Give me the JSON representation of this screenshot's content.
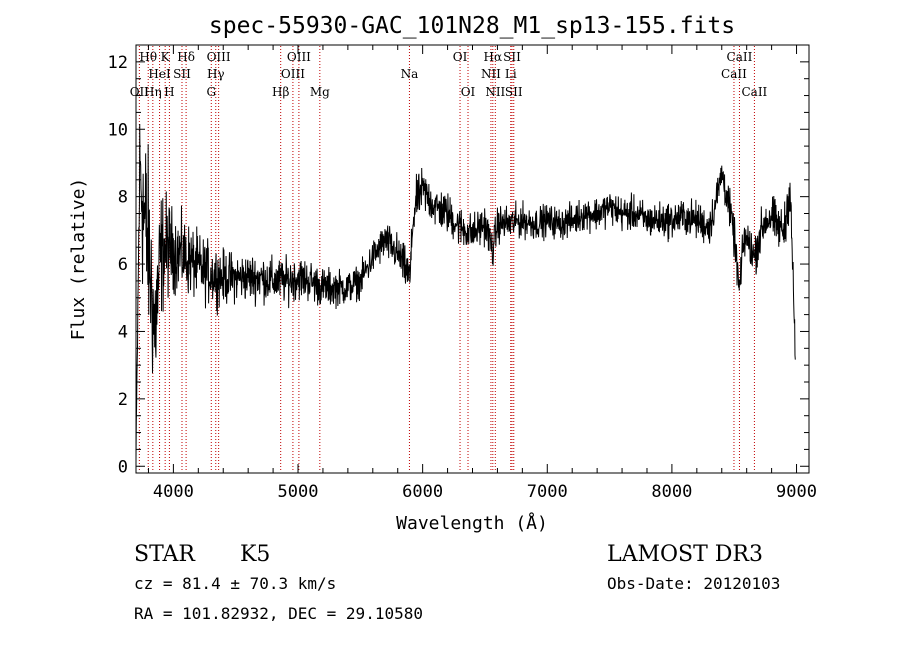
{
  "chart_data": {
    "type": "line",
    "title": "spec-55930-GAC_101N28_M1_sp13-155.fits",
    "xlabel": "Wavelength (Å)",
    "ylabel": "Flux (relative)",
    "xlim": [
      3700,
      9100
    ],
    "ylim": [
      -0.2,
      12.5
    ],
    "xticks": [
      4000,
      5000,
      6000,
      7000,
      8000,
      9000
    ],
    "yticks": [
      0,
      2,
      4,
      6,
      8,
      10,
      12
    ],
    "line_color": "#000000",
    "marker_color": "#c00000",
    "spectrum_anchors": {
      "x": [
        3700,
        3730,
        3760,
        3800,
        3850,
        3900,
        3950,
        4000,
        4100,
        4200,
        4300,
        4400,
        4500,
        4600,
        4700,
        4800,
        4900,
        5000,
        5100,
        5200,
        5300,
        5400,
        5500,
        5600,
        5700,
        5800,
        5900,
        5920,
        5950,
        6000,
        6100,
        6200,
        6300,
        6400,
        6500,
        6563,
        6600,
        6700,
        6800,
        6900,
        7000,
        7100,
        7200,
        7300,
        7400,
        7500,
        7600,
        7700,
        7800,
        7900,
        8000,
        8100,
        8200,
        8300,
        8350,
        8400,
        8450,
        8500,
        8542,
        8580,
        8620,
        8662,
        8700,
        8750,
        8800,
        8850,
        8900,
        8950,
        8990
      ],
      "y": [
        0.2,
        9.0,
        7.5,
        6.5,
        4.0,
        6.3,
        6.5,
        6.4,
        6.2,
        5.9,
        5.7,
        5.6,
        5.6,
        5.6,
        5.6,
        5.5,
        5.5,
        5.6,
        5.5,
        5.3,
        5.3,
        5.3,
        5.5,
        6.2,
        6.7,
        6.3,
        5.6,
        7.2,
        7.9,
        8.2,
        7.7,
        7.5,
        7.1,
        6.9,
        7.2,
        6.4,
        7.2,
        7.2,
        7.3,
        7.2,
        7.3,
        7.2,
        7.3,
        7.5,
        7.5,
        7.7,
        7.5,
        7.5,
        7.3,
        7.3,
        7.3,
        7.4,
        7.3,
        7.1,
        7.8,
        8.7,
        7.9,
        6.8,
        5.2,
        6.8,
        6.6,
        6.2,
        6.8,
        7.3,
        7.4,
        7.1,
        7.0,
        8.3,
        3.2
      ]
    },
    "spectrum_noise": {
      "x": [
        3700,
        3760,
        3900,
        4000,
        4500,
        5000,
        5500,
        5800,
        6000,
        7000,
        8000,
        8500,
        8990
      ],
      "amp": [
        0.3,
        2.6,
        1.6,
        1.0,
        0.6,
        0.55,
        0.4,
        0.5,
        0.55,
        0.4,
        0.45,
        0.5,
        0.6
      ]
    },
    "lines": [
      {
        "label": "OII",
        "x": 3727,
        "row": 3
      },
      {
        "label": "Hθ",
        "x": 3798,
        "row": 1
      },
      {
        "label": "Hη",
        "x": 3835,
        "row": 3
      },
      {
        "label": "HeI",
        "x": 3889,
        "row": 2
      },
      {
        "label": "K",
        "x": 3934,
        "row": 1
      },
      {
        "label": "H",
        "x": 3968,
        "row": 3
      },
      {
        "label": "SII",
        "x": 4069,
        "row": 2
      },
      {
        "label": "Hδ",
        "x": 4102,
        "row": 1
      },
      {
        "label": "G",
        "x": 4304,
        "row": 3
      },
      {
        "label": "Hγ",
        "x": 4340,
        "row": 2
      },
      {
        "label": "OIII",
        "x": 4363,
        "row": 1
      },
      {
        "label": "Hβ",
        "x": 4861,
        "row": 3
      },
      {
        "label": "OIII",
        "x": 4959,
        "row": 2
      },
      {
        "label": "OIII",
        "x": 5007,
        "row": 1
      },
      {
        "label": "Mg",
        "x": 5175,
        "row": 3
      },
      {
        "label": "Na",
        "x": 5894,
        "row": 2
      },
      {
        "label": "OI",
        "x": 6300,
        "row": 1
      },
      {
        "label": "OI",
        "x": 6364,
        "row": 3
      },
      {
        "label": "NII",
        "x": 6548,
        "row": 2
      },
      {
        "label": "Hα",
        "x": 6563,
        "row": 1
      },
      {
        "label": "NII",
        "x": 6583,
        "row": 3
      },
      {
        "label": "Li",
        "x": 6707,
        "row": 2
      },
      {
        "label": "SII",
        "x": 6717,
        "row": 1
      },
      {
        "label": "SII",
        "x": 6731,
        "row": 3
      },
      {
        "label": "CaII",
        "x": 8498,
        "row": 2
      },
      {
        "label": "CaII",
        "x": 8542,
        "row": 1
      },
      {
        "label": "CaII",
        "x": 8662,
        "row": 3
      }
    ]
  },
  "info": {
    "class": "STAR",
    "subclass": "K5",
    "survey": "LAMOST DR3",
    "cz": "cz = 81.4 ± 70.3 km/s",
    "obs_date": "Obs-Date: 20120103",
    "coords": "RA = 101.82932, DEC =  29.10580"
  }
}
